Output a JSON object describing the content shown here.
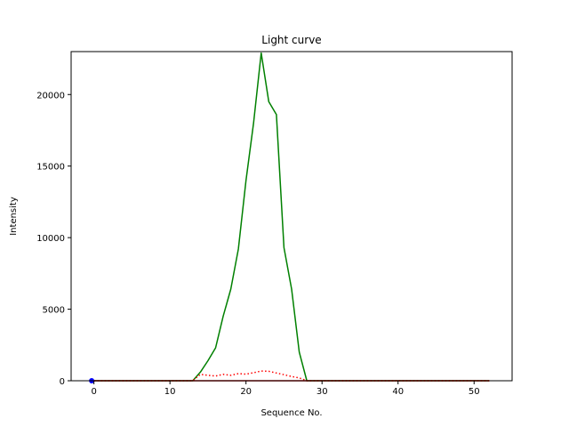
{
  "chart_data": {
    "type": "line",
    "title": "Light curve",
    "xlabel": "Sequence No.",
    "ylabel": "Intensity",
    "xlim": [
      -3,
      55
    ],
    "ylim": [
      0,
      23000
    ],
    "xticks": [
      0,
      10,
      20,
      30,
      40,
      50
    ],
    "yticks": [
      0,
      5000,
      10000,
      15000,
      20000
    ],
    "grid": false,
    "series": [
      {
        "style": "solid",
        "color": "#008000",
        "x": [
          0,
          13,
          14,
          15,
          16,
          17,
          18,
          19,
          20,
          21,
          22,
          23,
          24,
          25,
          26,
          27,
          28,
          52
        ],
        "y": [
          0,
          0,
          600,
          1400,
          2300,
          4500,
          6400,
          9200,
          14000,
          18000,
          22900,
          19500,
          18600,
          9300,
          6400,
          2000,
          0,
          0
        ]
      },
      {
        "style": "dotted",
        "color": "#ff0000",
        "x": [
          0,
          13,
          14,
          15,
          16,
          17,
          18,
          19,
          20,
          21,
          22,
          23,
          24,
          25,
          26,
          27,
          28,
          52
        ],
        "y": [
          0,
          0,
          450,
          380,
          330,
          450,
          380,
          500,
          460,
          560,
          680,
          660,
          540,
          420,
          300,
          200,
          0,
          0
        ]
      },
      {
        "style": "solid",
        "color": "#c00000",
        "x": [
          0,
          52
        ],
        "y": [
          0,
          0
        ]
      }
    ],
    "markers": [
      {
        "x": -0.3,
        "y": 0,
        "color": "#0000ff"
      }
    ]
  }
}
